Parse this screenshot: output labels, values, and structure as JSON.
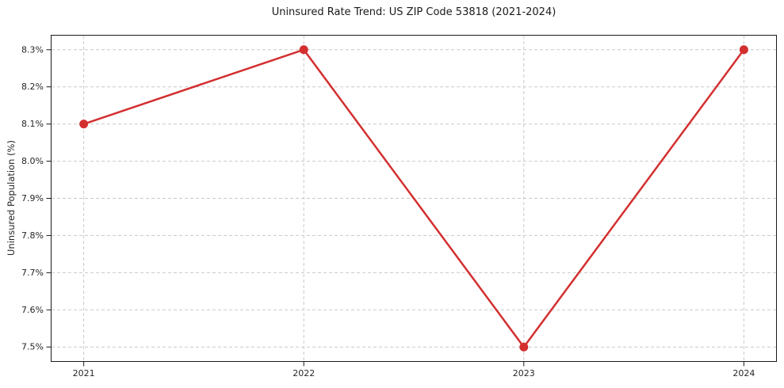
{
  "chart_data": {
    "type": "line",
    "title": "Uninsured Rate Trend: US ZIP Code 53818 (2021-2024)",
    "xlabel": "",
    "ylabel": "Uninsured Population (%)",
    "x": [
      2021,
      2022,
      2023,
      2024
    ],
    "values": [
      8.1,
      8.3,
      7.5,
      8.3
    ],
    "xticks": {
      "values": [
        2021,
        2022,
        2023,
        2024
      ],
      "labels": [
        "2021",
        "2022",
        "2023",
        "2024"
      ]
    },
    "yticks": {
      "values": [
        7.5,
        7.6,
        7.7,
        7.8,
        7.9,
        8.0,
        8.1,
        8.2,
        8.3
      ],
      "labels": [
        "7.5%",
        "7.6%",
        "7.7%",
        "7.8%",
        "7.9%",
        "8.0%",
        "8.1%",
        "8.2%",
        "8.3%"
      ]
    },
    "xlim": [
      2020.85,
      2024.15
    ],
    "ylim": [
      7.46,
      8.34
    ],
    "grid": true,
    "legend_position": "none",
    "colors": {
      "line": "#d32f2f",
      "marker": "#d32f2f",
      "grid": "#c9c9c9",
      "axis": "#1a1a1a",
      "text": "#262626"
    }
  }
}
